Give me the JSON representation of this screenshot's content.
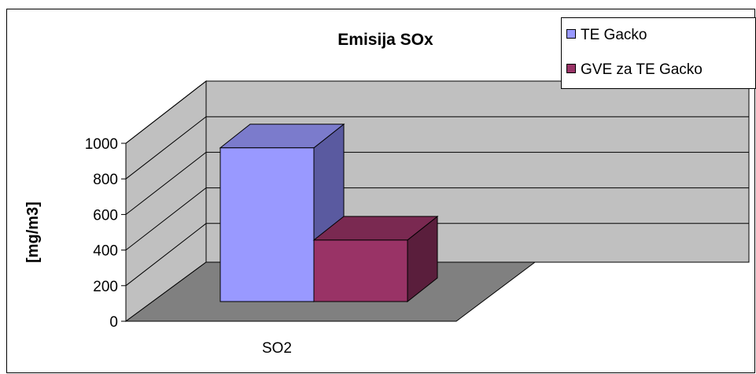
{
  "chart_data": {
    "type": "bar",
    "title": "Emisija SOx",
    "xlabel": "",
    "ylabel": "[mg/m3]",
    "categories": [
      "SO2"
    ],
    "series": [
      {
        "name": "TE Gacko",
        "values": [
          950
        ]
      },
      {
        "name": "GVE za TE Gacko",
        "values": [
          380
        ]
      }
    ],
    "ylim": [
      0,
      1000
    ],
    "yticks": [
      "0",
      "200",
      "400",
      "600",
      "800",
      "1000"
    ],
    "grid": true,
    "three_d": true,
    "legend_position": "top-right"
  },
  "colors": {
    "series": [
      "#9999ff",
      "#993366"
    ],
    "wall": "#c0c0c0",
    "floor": "#808080"
  }
}
